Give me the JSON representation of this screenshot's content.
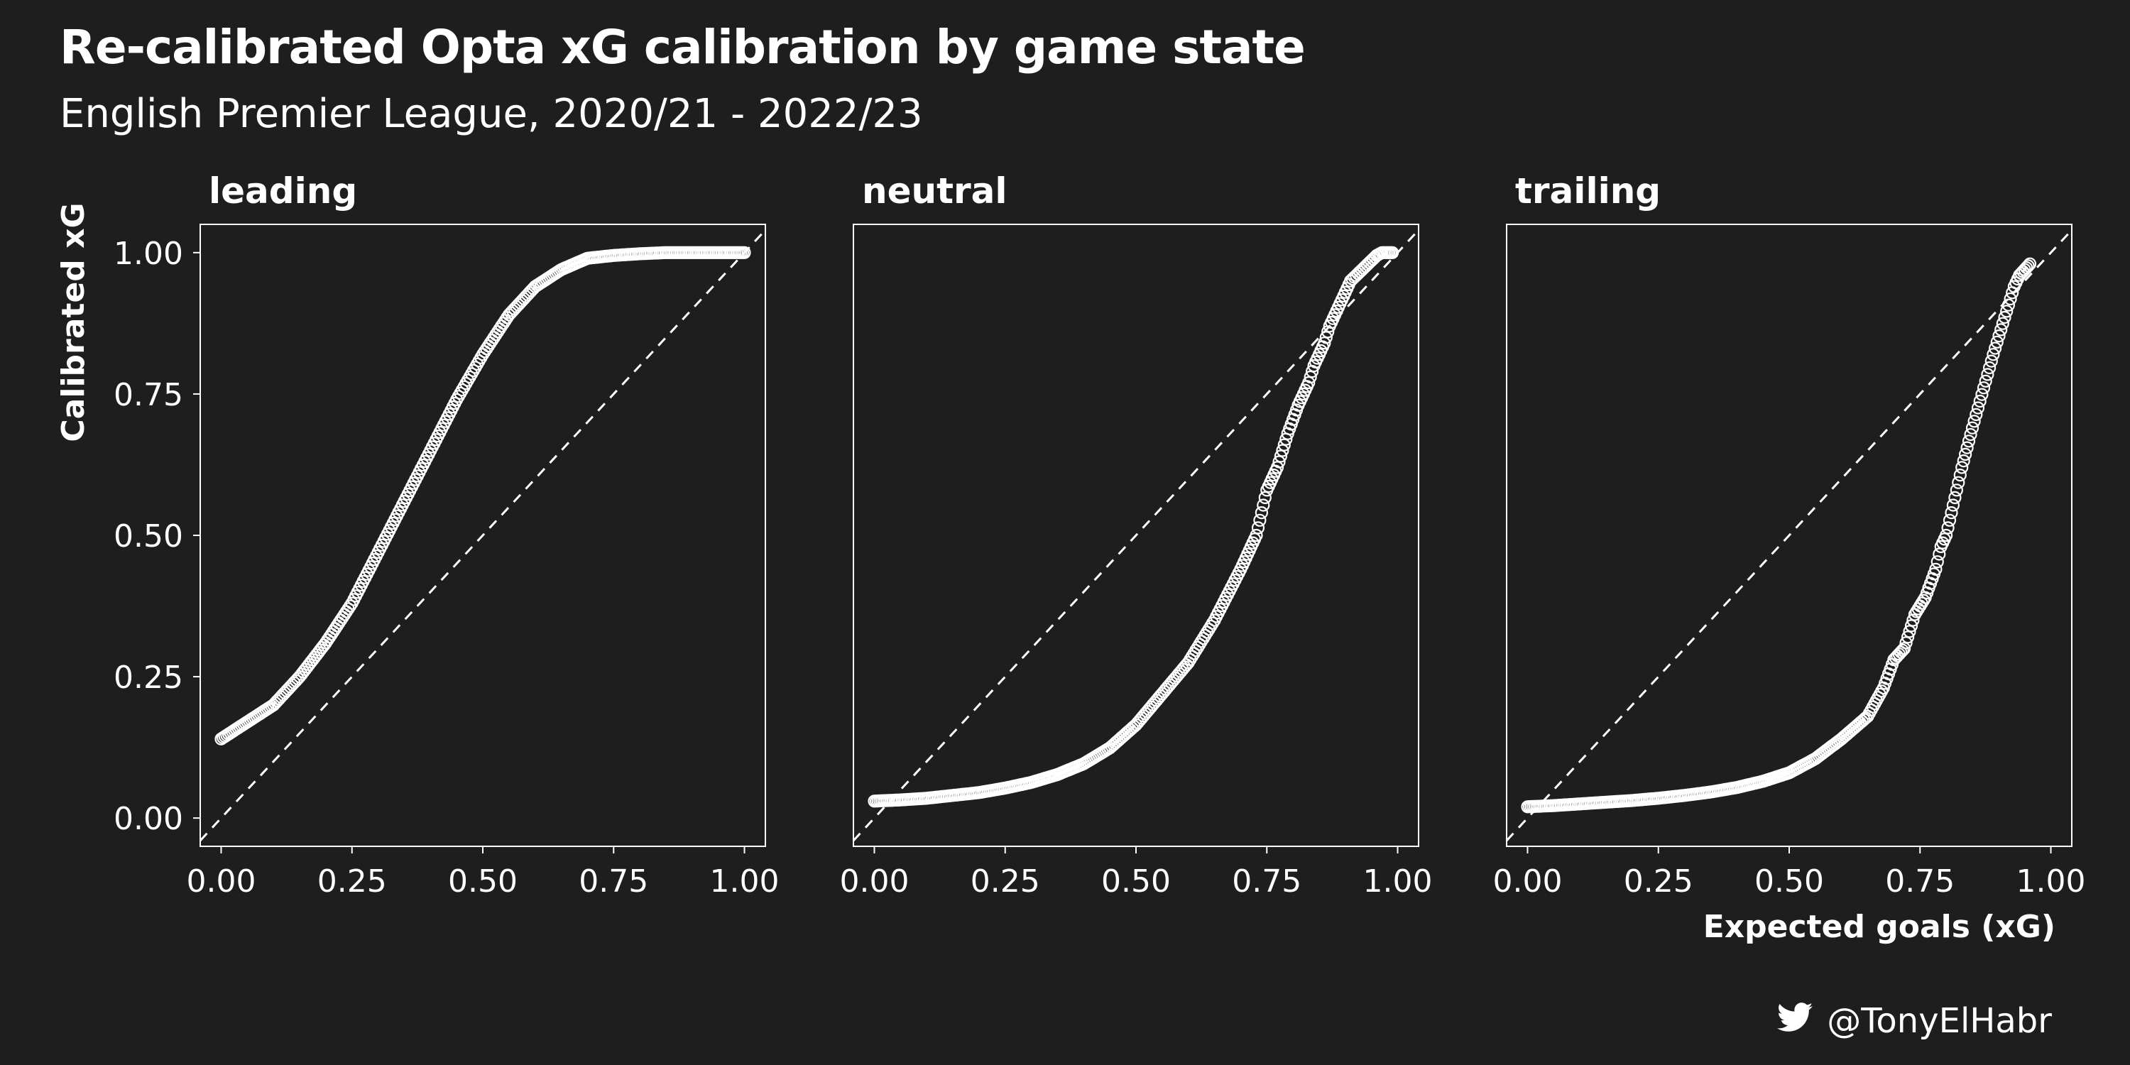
{
  "title": "Re-calibrated Opta xG calibration by game state",
  "subtitle": "English Premier League, 2020/21 - 2022/23",
  "credit": {
    "handle": "@TonyElHabr",
    "icon": "twitter-bird-icon"
  },
  "colors": {
    "background": "#1e1e1e",
    "foreground": "#ffffff"
  },
  "chart_data": {
    "type": "scatter",
    "xlabel": "Expected goals (xG)",
    "ylabel": "Calibrated xG",
    "xlim": [
      -0.04,
      1.04
    ],
    "ylim": [
      -0.05,
      1.05
    ],
    "x_ticks": [
      "0.00",
      "0.25",
      "0.50",
      "0.75",
      "1.00"
    ],
    "y_ticks": [
      "0.00",
      "0.25",
      "0.50",
      "0.75",
      "1.00"
    ],
    "x_tick_values": [
      0,
      0.25,
      0.5,
      0.75,
      1.0
    ],
    "y_tick_values": [
      0,
      0.25,
      0.5,
      0.75,
      1.0
    ],
    "reference_line": "y = x (dashed)",
    "marker": "hollow circle",
    "panels": [
      {
        "name": "leading",
        "points": [
          [
            0.0,
            0.14
          ],
          [
            0.05,
            0.17
          ],
          [
            0.1,
            0.2
          ],
          [
            0.15,
            0.25
          ],
          [
            0.2,
            0.31
          ],
          [
            0.25,
            0.38
          ],
          [
            0.3,
            0.47
          ],
          [
            0.35,
            0.56
          ],
          [
            0.4,
            0.65
          ],
          [
            0.45,
            0.74
          ],
          [
            0.5,
            0.82
          ],
          [
            0.55,
            0.89
          ],
          [
            0.6,
            0.94
          ],
          [
            0.65,
            0.97
          ],
          [
            0.7,
            0.99
          ],
          [
            0.75,
            0.995
          ],
          [
            0.8,
            0.998
          ],
          [
            0.85,
            1.0
          ],
          [
            0.9,
            1.0
          ],
          [
            0.95,
            1.0
          ],
          [
            1.0,
            1.0
          ]
        ]
      },
      {
        "name": "neutral",
        "points": [
          [
            0.0,
            0.03
          ],
          [
            0.05,
            0.032
          ],
          [
            0.1,
            0.035
          ],
          [
            0.15,
            0.04
          ],
          [
            0.2,
            0.045
          ],
          [
            0.25,
            0.053
          ],
          [
            0.3,
            0.063
          ],
          [
            0.35,
            0.077
          ],
          [
            0.4,
            0.096
          ],
          [
            0.45,
            0.124
          ],
          [
            0.5,
            0.165
          ],
          [
            0.55,
            0.22
          ],
          [
            0.6,
            0.275
          ],
          [
            0.65,
            0.35
          ],
          [
            0.7,
            0.44
          ],
          [
            0.73,
            0.5
          ],
          [
            0.75,
            0.58
          ],
          [
            0.77,
            0.62
          ],
          [
            0.79,
            0.68
          ],
          [
            0.81,
            0.73
          ],
          [
            0.83,
            0.77
          ],
          [
            0.84,
            0.8
          ],
          [
            0.86,
            0.84
          ],
          [
            0.87,
            0.87
          ],
          [
            0.9,
            0.93
          ],
          [
            0.91,
            0.95
          ],
          [
            0.96,
            0.995
          ],
          [
            0.97,
            1.0
          ],
          [
            0.99,
            1.0
          ]
        ]
      },
      {
        "name": "trailing",
        "points": [
          [
            0.0,
            0.02
          ],
          [
            0.05,
            0.022
          ],
          [
            0.1,
            0.025
          ],
          [
            0.15,
            0.028
          ],
          [
            0.2,
            0.031
          ],
          [
            0.25,
            0.035
          ],
          [
            0.3,
            0.04
          ],
          [
            0.35,
            0.046
          ],
          [
            0.4,
            0.054
          ],
          [
            0.45,
            0.065
          ],
          [
            0.5,
            0.08
          ],
          [
            0.55,
            0.105
          ],
          [
            0.6,
            0.14
          ],
          [
            0.65,
            0.18
          ],
          [
            0.68,
            0.23
          ],
          [
            0.7,
            0.28
          ],
          [
            0.72,
            0.3
          ],
          [
            0.74,
            0.36
          ],
          [
            0.76,
            0.39
          ],
          [
            0.78,
            0.44
          ],
          [
            0.79,
            0.48
          ],
          [
            0.8,
            0.5
          ],
          [
            0.83,
            0.62
          ],
          [
            0.85,
            0.69
          ],
          [
            0.89,
            0.82
          ],
          [
            0.93,
            0.94
          ],
          [
            0.94,
            0.96
          ],
          [
            0.96,
            0.98
          ]
        ]
      }
    ]
  }
}
